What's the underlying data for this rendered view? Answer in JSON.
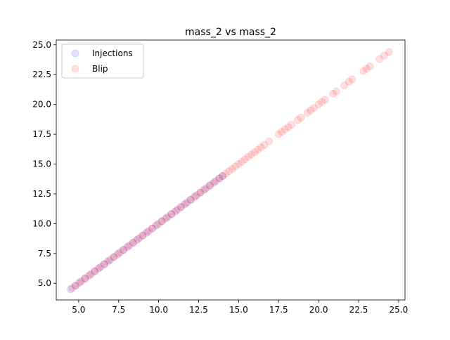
{
  "chart_data": {
    "type": "scatter",
    "title": "mass_2 vs mass_2",
    "xlabel": "",
    "ylabel": "",
    "xlim": [
      3.6,
      25.4
    ],
    "ylim": [
      3.6,
      25.4
    ],
    "x_ticks": [
      5.0,
      7.5,
      10.0,
      12.5,
      15.0,
      17.5,
      20.0,
      22.5,
      25.0
    ],
    "x_tick_labels": [
      "5.0",
      "7.5",
      "10.0",
      "12.5",
      "15.0",
      "17.5",
      "20.0",
      "22.5",
      "25.0"
    ],
    "y_ticks": [
      5.0,
      7.5,
      10.0,
      12.5,
      15.0,
      17.5,
      20.0,
      22.5,
      25.0
    ],
    "y_tick_labels": [
      "5.0",
      "7.5",
      "10.0",
      "12.5",
      "15.0",
      "17.5",
      "20.0",
      "22.5",
      "25.0"
    ],
    "grid": false,
    "legend_position": "upper-left",
    "series": [
      {
        "name": "Injections",
        "color": "#0000ff",
        "alpha": 0.12,
        "points": [
          [
            4.5,
            4.5
          ],
          [
            4.8,
            4.8
          ],
          [
            5.1,
            5.1
          ],
          [
            5.4,
            5.4
          ],
          [
            5.7,
            5.7
          ],
          [
            6.0,
            6.0
          ],
          [
            6.3,
            6.3
          ],
          [
            6.6,
            6.6
          ],
          [
            6.9,
            6.9
          ],
          [
            7.2,
            7.2
          ],
          [
            7.5,
            7.5
          ],
          [
            7.8,
            7.8
          ],
          [
            8.1,
            8.1
          ],
          [
            8.4,
            8.4
          ],
          [
            8.7,
            8.7
          ],
          [
            9.0,
            9.0
          ],
          [
            9.3,
            9.3
          ],
          [
            9.6,
            9.6
          ],
          [
            9.9,
            9.9
          ],
          [
            10.2,
            10.2
          ],
          [
            10.5,
            10.5
          ],
          [
            10.8,
            10.8
          ],
          [
            11.1,
            11.1
          ],
          [
            11.4,
            11.4
          ],
          [
            11.7,
            11.7
          ],
          [
            12.0,
            12.0
          ],
          [
            12.3,
            12.3
          ],
          [
            12.6,
            12.6
          ],
          [
            12.9,
            12.9
          ],
          [
            13.2,
            13.2
          ],
          [
            13.5,
            13.5
          ],
          [
            13.8,
            13.8
          ],
          [
            14.0,
            14.0
          ]
        ]
      },
      {
        "name": "Blip",
        "color": "#ff0000",
        "alpha": 0.12,
        "points": [
          [
            4.6,
            4.6
          ],
          [
            4.8,
            4.8
          ],
          [
            5.0,
            5.0
          ],
          [
            5.2,
            5.2
          ],
          [
            5.4,
            5.4
          ],
          [
            5.6,
            5.6
          ],
          [
            5.8,
            5.8
          ],
          [
            6.0,
            6.0
          ],
          [
            6.2,
            6.2
          ],
          [
            6.4,
            6.4
          ],
          [
            6.6,
            6.6
          ],
          [
            6.8,
            6.8
          ],
          [
            7.0,
            7.0
          ],
          [
            7.2,
            7.2
          ],
          [
            7.4,
            7.4
          ],
          [
            7.6,
            7.6
          ],
          [
            7.8,
            7.8
          ],
          [
            8.0,
            8.0
          ],
          [
            8.2,
            8.2
          ],
          [
            8.4,
            8.4
          ],
          [
            8.6,
            8.6
          ],
          [
            8.8,
            8.8
          ],
          [
            9.0,
            9.0
          ],
          [
            9.2,
            9.2
          ],
          [
            9.4,
            9.4
          ],
          [
            9.6,
            9.6
          ],
          [
            9.8,
            9.8
          ],
          [
            10.0,
            10.0
          ],
          [
            10.2,
            10.2
          ],
          [
            10.4,
            10.4
          ],
          [
            10.6,
            10.6
          ],
          [
            10.8,
            10.8
          ],
          [
            11.0,
            11.0
          ],
          [
            11.2,
            11.2
          ],
          [
            11.4,
            11.4
          ],
          [
            11.6,
            11.6
          ],
          [
            11.8,
            11.8
          ],
          [
            12.0,
            12.0
          ],
          [
            12.2,
            12.2
          ],
          [
            12.4,
            12.4
          ],
          [
            12.6,
            12.6
          ],
          [
            12.8,
            12.8
          ],
          [
            13.0,
            13.0
          ],
          [
            13.2,
            13.2
          ],
          [
            13.4,
            13.4
          ],
          [
            13.6,
            13.6
          ],
          [
            13.8,
            13.8
          ],
          [
            14.0,
            14.0
          ],
          [
            14.2,
            14.2
          ],
          [
            14.4,
            14.4
          ],
          [
            14.6,
            14.6
          ],
          [
            14.8,
            14.8
          ],
          [
            15.0,
            15.0
          ],
          [
            15.2,
            15.2
          ],
          [
            15.4,
            15.4
          ],
          [
            15.6,
            15.6
          ],
          [
            15.8,
            15.8
          ],
          [
            16.0,
            16.0
          ],
          [
            16.2,
            16.2
          ],
          [
            16.4,
            16.4
          ],
          [
            16.6,
            16.6
          ],
          [
            16.9,
            16.9
          ],
          [
            17.5,
            17.5
          ],
          [
            17.7,
            17.7
          ],
          [
            17.9,
            17.9
          ],
          [
            18.1,
            18.1
          ],
          [
            18.3,
            18.3
          ],
          [
            18.7,
            18.7
          ],
          [
            18.9,
            18.9
          ],
          [
            19.3,
            19.3
          ],
          [
            19.5,
            19.5
          ],
          [
            19.7,
            19.7
          ],
          [
            20.0,
            20.0
          ],
          [
            20.2,
            20.2
          ],
          [
            20.4,
            20.4
          ],
          [
            20.9,
            20.9
          ],
          [
            21.1,
            21.1
          ],
          [
            21.6,
            21.6
          ],
          [
            21.9,
            21.9
          ],
          [
            22.1,
            22.1
          ],
          [
            22.8,
            22.8
          ],
          [
            23.0,
            23.0
          ],
          [
            23.2,
            23.2
          ],
          [
            23.8,
            23.8
          ],
          [
            24.1,
            24.1
          ],
          [
            24.4,
            24.4
          ]
        ]
      }
    ]
  }
}
